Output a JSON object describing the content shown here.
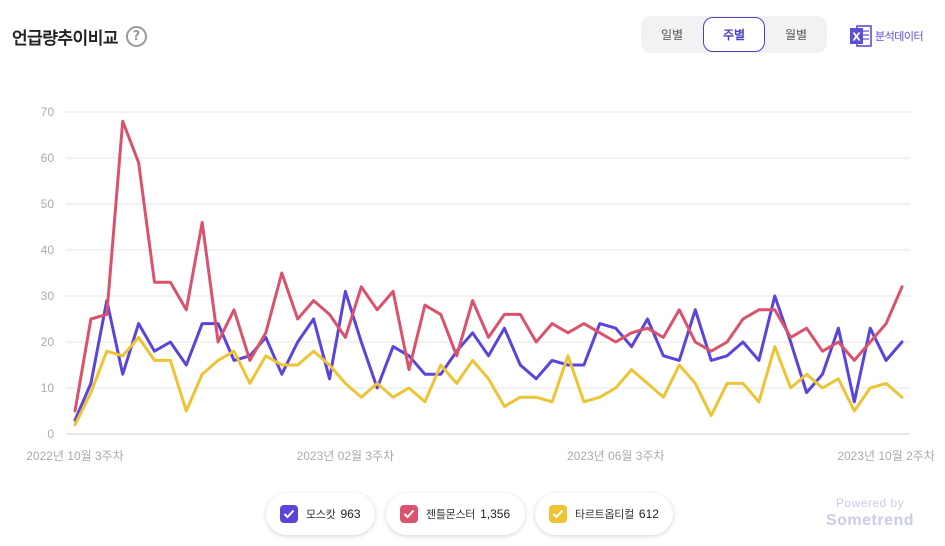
{
  "header": {
    "title": "언급량추이비교",
    "help_symbol": "?",
    "help_icon": "question-circle-icon"
  },
  "period_tabs": [
    {
      "label": "일별",
      "active": false
    },
    {
      "label": "주별",
      "active": true
    },
    {
      "label": "월별",
      "active": false
    }
  ],
  "export": {
    "label": "분석데이터",
    "icon": "excel-icon",
    "icon_letter": "X",
    "icon_color": "#5b4fd6"
  },
  "legend": [
    {
      "name": "모스캇",
      "count": "963",
      "color": "#5b44d9"
    },
    {
      "name": "젠틀몬스터",
      "count": "1,356",
      "color": "#d9536d"
    },
    {
      "name": "타르트옵티컬",
      "count": "612",
      "color": "#ecc436"
    }
  ],
  "powered": {
    "by": "Powered by",
    "brand": "Sometrend"
  },
  "chart_data": {
    "type": "line",
    "x_tick_labels": [
      "2022년 10월 3주차",
      "2023년 02월 3주차",
      "2023년 06월 3주차",
      "2023년 10월 2주차"
    ],
    "x_tick_index": [
      0,
      17,
      34,
      51
    ],
    "ylim": [
      0,
      70
    ],
    "yticks": [
      0,
      10,
      20,
      30,
      40,
      50,
      60,
      70
    ],
    "grid": true,
    "legend_position": "bottom",
    "series": [
      {
        "name": "모스캇",
        "color": "#5b44d9",
        "values": [
          3,
          11,
          29,
          13,
          24,
          18,
          20,
          15,
          24,
          24,
          16,
          17,
          21,
          13,
          20,
          25,
          12,
          31,
          20,
          10,
          19,
          17,
          13,
          13,
          18,
          22,
          17,
          23,
          15,
          12,
          16,
          15,
          15,
          24,
          23,
          19,
          25,
          17,
          16,
          27,
          16,
          17,
          20,
          16,
          30,
          20,
          9,
          13,
          23,
          7,
          23,
          16,
          20
        ]
      },
      {
        "name": "젠틀몬스터",
        "color": "#d9536d",
        "values": [
          5,
          25,
          26,
          68,
          59,
          33,
          33,
          27,
          46,
          20,
          27,
          16,
          22,
          35,
          25,
          29,
          26,
          21,
          32,
          27,
          31,
          14,
          28,
          26,
          17,
          29,
          21,
          26,
          26,
          20,
          24,
          22,
          24,
          22,
          20,
          22,
          23,
          21,
          27,
          20,
          18,
          20,
          25,
          27,
          27,
          21,
          23,
          18,
          20,
          16,
          20,
          24,
          32
        ]
      },
      {
        "name": "타르트옵티컬",
        "color": "#ecc436",
        "values": [
          2,
          9,
          18,
          17,
          21,
          16,
          16,
          5,
          13,
          16,
          18,
          11,
          17,
          15,
          15,
          18,
          15,
          11,
          8,
          11,
          8,
          10,
          7,
          15,
          11,
          16,
          12,
          6,
          8,
          8,
          7,
          17,
          7,
          8,
          10,
          14,
          11,
          8,
          15,
          11,
          4,
          11,
          11,
          7,
          19,
          10,
          13,
          10,
          12,
          5,
          10,
          11,
          8
        ]
      }
    ]
  }
}
